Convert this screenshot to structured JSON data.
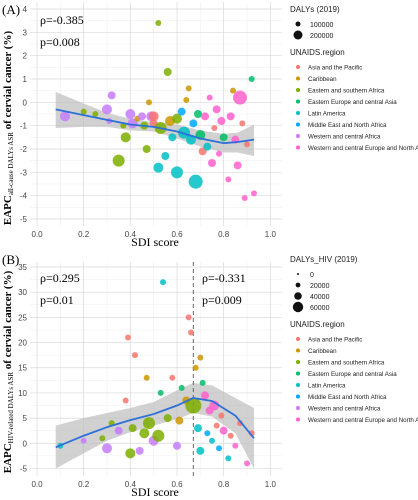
{
  "colors": {
    "Asia and the Pacific": "#f8766d",
    "Caribbean": "#cd9600",
    "Eastern and southern Africa": "#7cae00",
    "Eastern Europe and central Asia": "#00be67",
    "Latin America": "#00bfc4",
    "Middle East and North Africa": "#00a9ff",
    "Western and central Africa": "#c77cff",
    "Western and central Europe and North America": "#ff61cc",
    "trend": "#2e6fd8",
    "ribbon": "#bdbdbd",
    "grid_major": "#d9d9d9",
    "grid_minor": "#eeeeee",
    "vline": "#666666"
  },
  "chart_data": [
    {
      "type": "scatter",
      "panel_label": "(A)",
      "xlabel": "SDI score",
      "ylabel": "EAPC all-cause DALYs ASR of cervial cancer (%)",
      "ylabel_parts": [
        "EAPC",
        "all-cause DALYs ASR",
        " of cervial cancer (%)"
      ],
      "xlim": [
        -0.03,
        1.05
      ],
      "ylim": [
        -5.3,
        4.3
      ],
      "x_ticks": [
        0.0,
        0.2,
        0.4,
        0.6,
        0.8,
        1.0
      ],
      "x_tick_labels": [
        "0.0",
        "0.2",
        "0.4",
        "0.6",
        "0.8",
        "1.0"
      ],
      "y_ticks": [
        -5,
        -4,
        -3,
        -2,
        -1,
        0,
        1,
        2,
        3,
        4
      ],
      "y_tick_labels": [
        "-5",
        "-4",
        "-3",
        "-2",
        "-1",
        "0",
        "1",
        "2",
        "3",
        "4"
      ],
      "annotations": [
        "ρ=-0.385",
        "p=0.008"
      ],
      "size_legend": {
        "title": "DALYs (2019)",
        "values": [
          "100000",
          "200000"
        ]
      },
      "color_legend_title": "UNAIDS.region",
      "regions": [
        "Asia and the Pacific",
        "Caribbean",
        "Eastern and southern Africa",
        "Eastern Europe and central Asia",
        "Latin America",
        "Middle East and North Africa",
        "Western and central Africa",
        "Western and central Europe and North America"
      ],
      "trend": {
        "x": [
          0.08,
          0.2,
          0.3,
          0.4,
          0.5,
          0.6,
          0.7,
          0.8,
          0.86,
          0.93
        ],
        "y": [
          -0.3,
          -0.55,
          -0.75,
          -0.95,
          -1.05,
          -1.25,
          -1.55,
          -1.75,
          -1.7,
          -1.6
        ]
      },
      "ribbon": {
        "upper": [
          0.45,
          -0.05,
          -0.45,
          -0.7,
          -0.85,
          -0.95,
          -1.2,
          -1.35,
          -1.3,
          -0.95
        ],
        "lower": [
          -1.1,
          -1.05,
          -1.05,
          -1.2,
          -1.25,
          -1.55,
          -1.9,
          -2.15,
          -2.15,
          -2.3
        ]
      },
      "points": [
        {
          "x": 0.12,
          "y": -0.6,
          "r": 5,
          "region": "Western and central Africa"
        },
        {
          "x": 0.2,
          "y": -0.4,
          "r": 3,
          "region": "Eastern and southern Africa"
        },
        {
          "x": 0.25,
          "y": -0.5,
          "r": 3,
          "region": "Eastern and southern Africa"
        },
        {
          "x": 0.3,
          "y": -0.3,
          "r": 5,
          "region": "Western and central Africa"
        },
        {
          "x": 0.31,
          "y": -0.8,
          "r": 3,
          "region": "Western and central Africa"
        },
        {
          "x": 0.32,
          "y": 0.3,
          "r": 4,
          "region": "Western and central Africa"
        },
        {
          "x": 0.35,
          "y": -2.5,
          "r": 6,
          "region": "Eastern and southern Africa"
        },
        {
          "x": 0.37,
          "y": -1.0,
          "r": 3,
          "region": "Eastern and southern Africa"
        },
        {
          "x": 0.38,
          "y": -1.5,
          "r": 5,
          "region": "Eastern and southern Africa"
        },
        {
          "x": 0.4,
          "y": -0.5,
          "r": 5,
          "region": "Western and central Africa"
        },
        {
          "x": 0.41,
          "y": -0.9,
          "r": 5,
          "region": "Western and central Africa"
        },
        {
          "x": 0.43,
          "y": -0.7,
          "r": 3,
          "region": "Caribbean"
        },
        {
          "x": 0.45,
          "y": -0.6,
          "r": 4,
          "region": "Western and central Africa"
        },
        {
          "x": 0.46,
          "y": -1.0,
          "r": 4,
          "region": "Eastern and southern Africa"
        },
        {
          "x": 0.47,
          "y": -2.0,
          "r": 4,
          "region": "Eastern and southern Africa"
        },
        {
          "x": 0.48,
          "y": 0.0,
          "r": 3,
          "region": "Caribbean"
        },
        {
          "x": 0.49,
          "y": -0.6,
          "r": 5,
          "region": "Western and central Africa"
        },
        {
          "x": 0.5,
          "y": -0.9,
          "r": 4,
          "region": "Asia and the Pacific"
        },
        {
          "x": 0.5,
          "y": -0.6,
          "r": 5,
          "region": "Asia and the Pacific"
        },
        {
          "x": 0.52,
          "y": 3.4,
          "r": 3,
          "region": "Eastern and southern Africa"
        },
        {
          "x": 0.52,
          "y": -2.8,
          "r": 5,
          "region": "Latin America"
        },
        {
          "x": 0.53,
          "y": -1.1,
          "r": 6,
          "region": "Eastern and southern Africa"
        },
        {
          "x": 0.55,
          "y": -2.3,
          "r": 4,
          "region": "Latin America"
        },
        {
          "x": 0.56,
          "y": 1.3,
          "r": 4,
          "region": "Eastern and southern Africa"
        },
        {
          "x": 0.57,
          "y": -0.8,
          "r": 5,
          "region": "Caribbean"
        },
        {
          "x": 0.58,
          "y": -1.5,
          "r": 4,
          "region": "Latin America"
        },
        {
          "x": 0.6,
          "y": -0.7,
          "r": 5,
          "region": "Eastern and southern Africa"
        },
        {
          "x": 0.6,
          "y": -3.0,
          "r": 6,
          "region": "Latin America"
        },
        {
          "x": 0.62,
          "y": -0.4,
          "r": 4,
          "region": "Middle East and North Africa"
        },
        {
          "x": 0.63,
          "y": -1.3,
          "r": 6,
          "region": "Latin America"
        },
        {
          "x": 0.64,
          "y": 0.1,
          "r": 3,
          "region": "Caribbean"
        },
        {
          "x": 0.65,
          "y": 0.6,
          "r": 3,
          "region": "Caribbean"
        },
        {
          "x": 0.66,
          "y": -1.6,
          "r": 5,
          "region": "Latin America"
        },
        {
          "x": 0.67,
          "y": -0.9,
          "r": 4,
          "region": "Middle East and North Africa"
        },
        {
          "x": 0.68,
          "y": -3.4,
          "r": 7,
          "region": "Latin America"
        },
        {
          "x": 0.69,
          "y": -0.5,
          "r": 4,
          "region": "Eastern Europe and central Asia"
        },
        {
          "x": 0.7,
          "y": -1.4,
          "r": 5,
          "region": "Eastern Europe and central Asia"
        },
        {
          "x": 0.71,
          "y": -2.1,
          "r": 4,
          "region": "Asia and the Pacific"
        },
        {
          "x": 0.72,
          "y": -0.6,
          "r": 4,
          "region": "Western and central Europe and North America"
        },
        {
          "x": 0.73,
          "y": -1.9,
          "r": 4,
          "region": "Latin America"
        },
        {
          "x": 0.74,
          "y": 0.2,
          "r": 3,
          "region": "Western and central Europe and North America"
        },
        {
          "x": 0.75,
          "y": -2.6,
          "r": 4,
          "region": "Western and central Europe and North America"
        },
        {
          "x": 0.76,
          "y": -1.1,
          "r": 3,
          "region": "Asia and the Pacific"
        },
        {
          "x": 0.77,
          "y": -0.3,
          "r": 4,
          "region": "Western and central Europe and North America"
        },
        {
          "x": 0.78,
          "y": -2.2,
          "r": 3,
          "region": "Western and central Europe and North America"
        },
        {
          "x": 0.79,
          "y": -0.8,
          "r": 4,
          "region": "Western and central Europe and North America"
        },
        {
          "x": 0.8,
          "y": -1.5,
          "r": 4,
          "region": "Eastern Europe and central Asia"
        },
        {
          "x": 0.82,
          "y": -3.3,
          "r": 3,
          "region": "Western and central Europe and North America"
        },
        {
          "x": 0.83,
          "y": -0.6,
          "r": 4,
          "region": "Western and central Europe and North America"
        },
        {
          "x": 0.84,
          "y": 0.5,
          "r": 3,
          "region": "Caribbean"
        },
        {
          "x": 0.85,
          "y": -1.6,
          "r": 4,
          "region": "Western and central Europe and North America"
        },
        {
          "x": 0.86,
          "y": -2.7,
          "r": 4,
          "region": "Western and central Europe and North America"
        },
        {
          "x": 0.87,
          "y": 0.2,
          "r": 7,
          "region": "Western and central Europe and North America"
        },
        {
          "x": 0.88,
          "y": -0.9,
          "r": 3,
          "region": "Asia and the Pacific"
        },
        {
          "x": 0.89,
          "y": -4.1,
          "r": 3,
          "region": "Western and central Europe and North America"
        },
        {
          "x": 0.9,
          "y": -1.8,
          "r": 3,
          "region": "Asia and the Pacific"
        },
        {
          "x": 0.92,
          "y": 1.0,
          "r": 3,
          "region": "Eastern Europe and central Asia"
        },
        {
          "x": 0.93,
          "y": -3.9,
          "r": 3,
          "region": "Western and central Europe and North America"
        }
      ]
    },
    {
      "type": "scatter",
      "panel_label": "(B)",
      "xlabel": "SDI score",
      "ylabel": "EAPC HIV-related DALYs ASR of cervial cancer (%)",
      "ylabel_parts": [
        "EAPC",
        "HIV-related DALYs ASR",
        " of cervial cancer (%)"
      ],
      "xlim": [
        -0.03,
        1.05
      ],
      "ylim": [
        -6.5,
        36
      ],
      "x_ticks": [
        0.0,
        0.2,
        0.4,
        0.6,
        0.8,
        1.0
      ],
      "x_tick_labels": [
        "0.0",
        "0.2",
        "0.4",
        "0.6",
        "0.8",
        "1.0"
      ],
      "y_ticks": [
        -5,
        0,
        5,
        10,
        15,
        20,
        25,
        30,
        35
      ],
      "y_tick_labels": [
        "-5",
        "0",
        "5",
        "10",
        "15",
        "20",
        "25",
        "30",
        "35"
      ],
      "vline_x": 0.67,
      "annotations": [
        "ρ=0.295",
        "p=0.01",
        "ρ=-0.331",
        "p=0.009"
      ],
      "size_legend": {
        "title": "DALYs_HIV (2019)",
        "values": [
          "0",
          "20000",
          "40000",
          "60000"
        ]
      },
      "color_legend_title": "UNAIDS.region",
      "regions": [
        "Asia and the Pacific",
        "Caribbean",
        "Eastern and southern Africa",
        "Eastern Europe and central Asia",
        "Latin America",
        "Middle East and North Africa",
        "Western and central Africa",
        "Western and central Europe and North America"
      ],
      "trend": {
        "x": [
          0.08,
          0.2,
          0.3,
          0.4,
          0.5,
          0.6,
          0.67,
          0.75,
          0.85,
          0.93
        ],
        "y": [
          -0.8,
          1.5,
          3.2,
          4.6,
          5.8,
          7.5,
          9.0,
          8.4,
          5.5,
          1.0
        ]
      },
      "ribbon": {
        "upper": [
          3.5,
          5.0,
          6.0,
          7.0,
          8.2,
          10.5,
          12.0,
          11.5,
          9.0,
          7.0
        ],
        "lower": [
          -5.0,
          -2.0,
          0.5,
          2.2,
          3.5,
          4.8,
          6.0,
          5.3,
          2.0,
          -5.0
        ]
      },
      "points": [
        {
          "x": 0.1,
          "y": -0.5,
          "r": 3,
          "region": "Latin America"
        },
        {
          "x": 0.2,
          "y": 0.5,
          "r": 3,
          "region": "Western and central Africa"
        },
        {
          "x": 0.28,
          "y": 1.0,
          "r": 3,
          "region": "Eastern and southern Africa"
        },
        {
          "x": 0.3,
          "y": -1.0,
          "r": 5,
          "region": "Western and central Africa"
        },
        {
          "x": 0.32,
          "y": 4.0,
          "r": 3,
          "region": "Eastern and southern Africa"
        },
        {
          "x": 0.35,
          "y": 2.5,
          "r": 4,
          "region": "Western and central Africa"
        },
        {
          "x": 0.38,
          "y": 8.5,
          "r": 3,
          "region": "Asia and the Pacific"
        },
        {
          "x": 0.39,
          "y": 21.0,
          "r": 3,
          "region": "Asia and the Pacific"
        },
        {
          "x": 0.4,
          "y": -2.0,
          "r": 5,
          "region": "Eastern and southern Africa"
        },
        {
          "x": 0.41,
          "y": 3.0,
          "r": 4,
          "region": "Eastern and southern Africa"
        },
        {
          "x": 0.42,
          "y": 17.5,
          "r": 3,
          "region": "Asia and the Pacific"
        },
        {
          "x": 0.44,
          "y": -1.5,
          "r": 4,
          "region": "Western and central Africa"
        },
        {
          "x": 0.46,
          "y": 2.0,
          "r": 5,
          "region": "Eastern and southern Africa"
        },
        {
          "x": 0.47,
          "y": 13.0,
          "r": 3,
          "region": "Caribbean"
        },
        {
          "x": 0.48,
          "y": 4.0,
          "r": 6,
          "region": "Eastern and southern Africa"
        },
        {
          "x": 0.5,
          "y": 0.5,
          "r": 5,
          "region": "Western and central Africa"
        },
        {
          "x": 0.52,
          "y": 1.5,
          "r": 6,
          "region": "Eastern and southern Africa"
        },
        {
          "x": 0.53,
          "y": 10.0,
          "r": 3,
          "region": "Eastern Europe and central Asia"
        },
        {
          "x": 0.54,
          "y": 32.0,
          "r": 3,
          "region": "Latin America"
        },
        {
          "x": 0.56,
          "y": 5.0,
          "r": 4,
          "region": "Eastern and southern Africa"
        },
        {
          "x": 0.58,
          "y": 13.0,
          "r": 3,
          "region": "Asia and the Pacific"
        },
        {
          "x": 0.6,
          "y": -0.5,
          "r": 4,
          "region": "Western and central Africa"
        },
        {
          "x": 0.61,
          "y": 4.5,
          "r": 4,
          "region": "Caribbean"
        },
        {
          "x": 0.62,
          "y": 11.0,
          "r": 3,
          "region": "Eastern Europe and central Asia"
        },
        {
          "x": 0.64,
          "y": 8.5,
          "r": 4,
          "region": "Caribbean"
        },
        {
          "x": 0.65,
          "y": 25.0,
          "r": 3,
          "region": "Asia and the Pacific"
        },
        {
          "x": 0.66,
          "y": 22.0,
          "r": 3,
          "region": "Asia and the Pacific"
        },
        {
          "x": 0.67,
          "y": 7.5,
          "r": 8,
          "region": "Eastern and southern Africa"
        },
        {
          "x": 0.68,
          "y": 15.0,
          "r": 3,
          "region": "Caribbean"
        },
        {
          "x": 0.69,
          "y": 3.0,
          "r": 4,
          "region": "Latin America"
        },
        {
          "x": 0.7,
          "y": 17.0,
          "r": 3,
          "region": "Caribbean"
        },
        {
          "x": 0.7,
          "y": -1.5,
          "r": 4,
          "region": "Latin America"
        },
        {
          "x": 0.71,
          "y": 12.0,
          "r": 3,
          "region": "Eastern Europe and central Asia"
        },
        {
          "x": 0.72,
          "y": 9.5,
          "r": 4,
          "region": "Western and central Europe and North America"
        },
        {
          "x": 0.73,
          "y": 2.0,
          "r": 3,
          "region": "Middle East and North Africa"
        },
        {
          "x": 0.74,
          "y": 6.5,
          "r": 4,
          "region": "Western and central Europe and North America"
        },
        {
          "x": 0.75,
          "y": 0.5,
          "r": 3,
          "region": "Latin America"
        },
        {
          "x": 0.76,
          "y": 7.5,
          "r": 5,
          "region": "Western and central Europe and North America"
        },
        {
          "x": 0.77,
          "y": 3.5,
          "r": 3,
          "region": "Asia and the Pacific"
        },
        {
          "x": 0.78,
          "y": -1.0,
          "r": 3,
          "region": "Middle East and North Africa"
        },
        {
          "x": 0.79,
          "y": 5.5,
          "r": 3,
          "region": "Asia and the Pacific"
        },
        {
          "x": 0.8,
          "y": 2.5,
          "r": 4,
          "region": "Western and central Europe and North America"
        },
        {
          "x": 0.82,
          "y": -3.0,
          "r": 3,
          "region": "Latin America"
        },
        {
          "x": 0.83,
          "y": 1.5,
          "r": 3,
          "region": "Asia and the Pacific"
        },
        {
          "x": 0.85,
          "y": -0.5,
          "r": 3,
          "region": "Western and central Europe and North America"
        },
        {
          "x": 0.87,
          "y": 4.0,
          "r": 3,
          "region": "Asia and the Pacific"
        },
        {
          "x": 0.9,
          "y": -4.0,
          "r": 3,
          "region": "Western and central Europe and North America"
        },
        {
          "x": 0.92,
          "y": 2.0,
          "r": 3,
          "region": "Asia and the Pacific"
        }
      ]
    }
  ]
}
